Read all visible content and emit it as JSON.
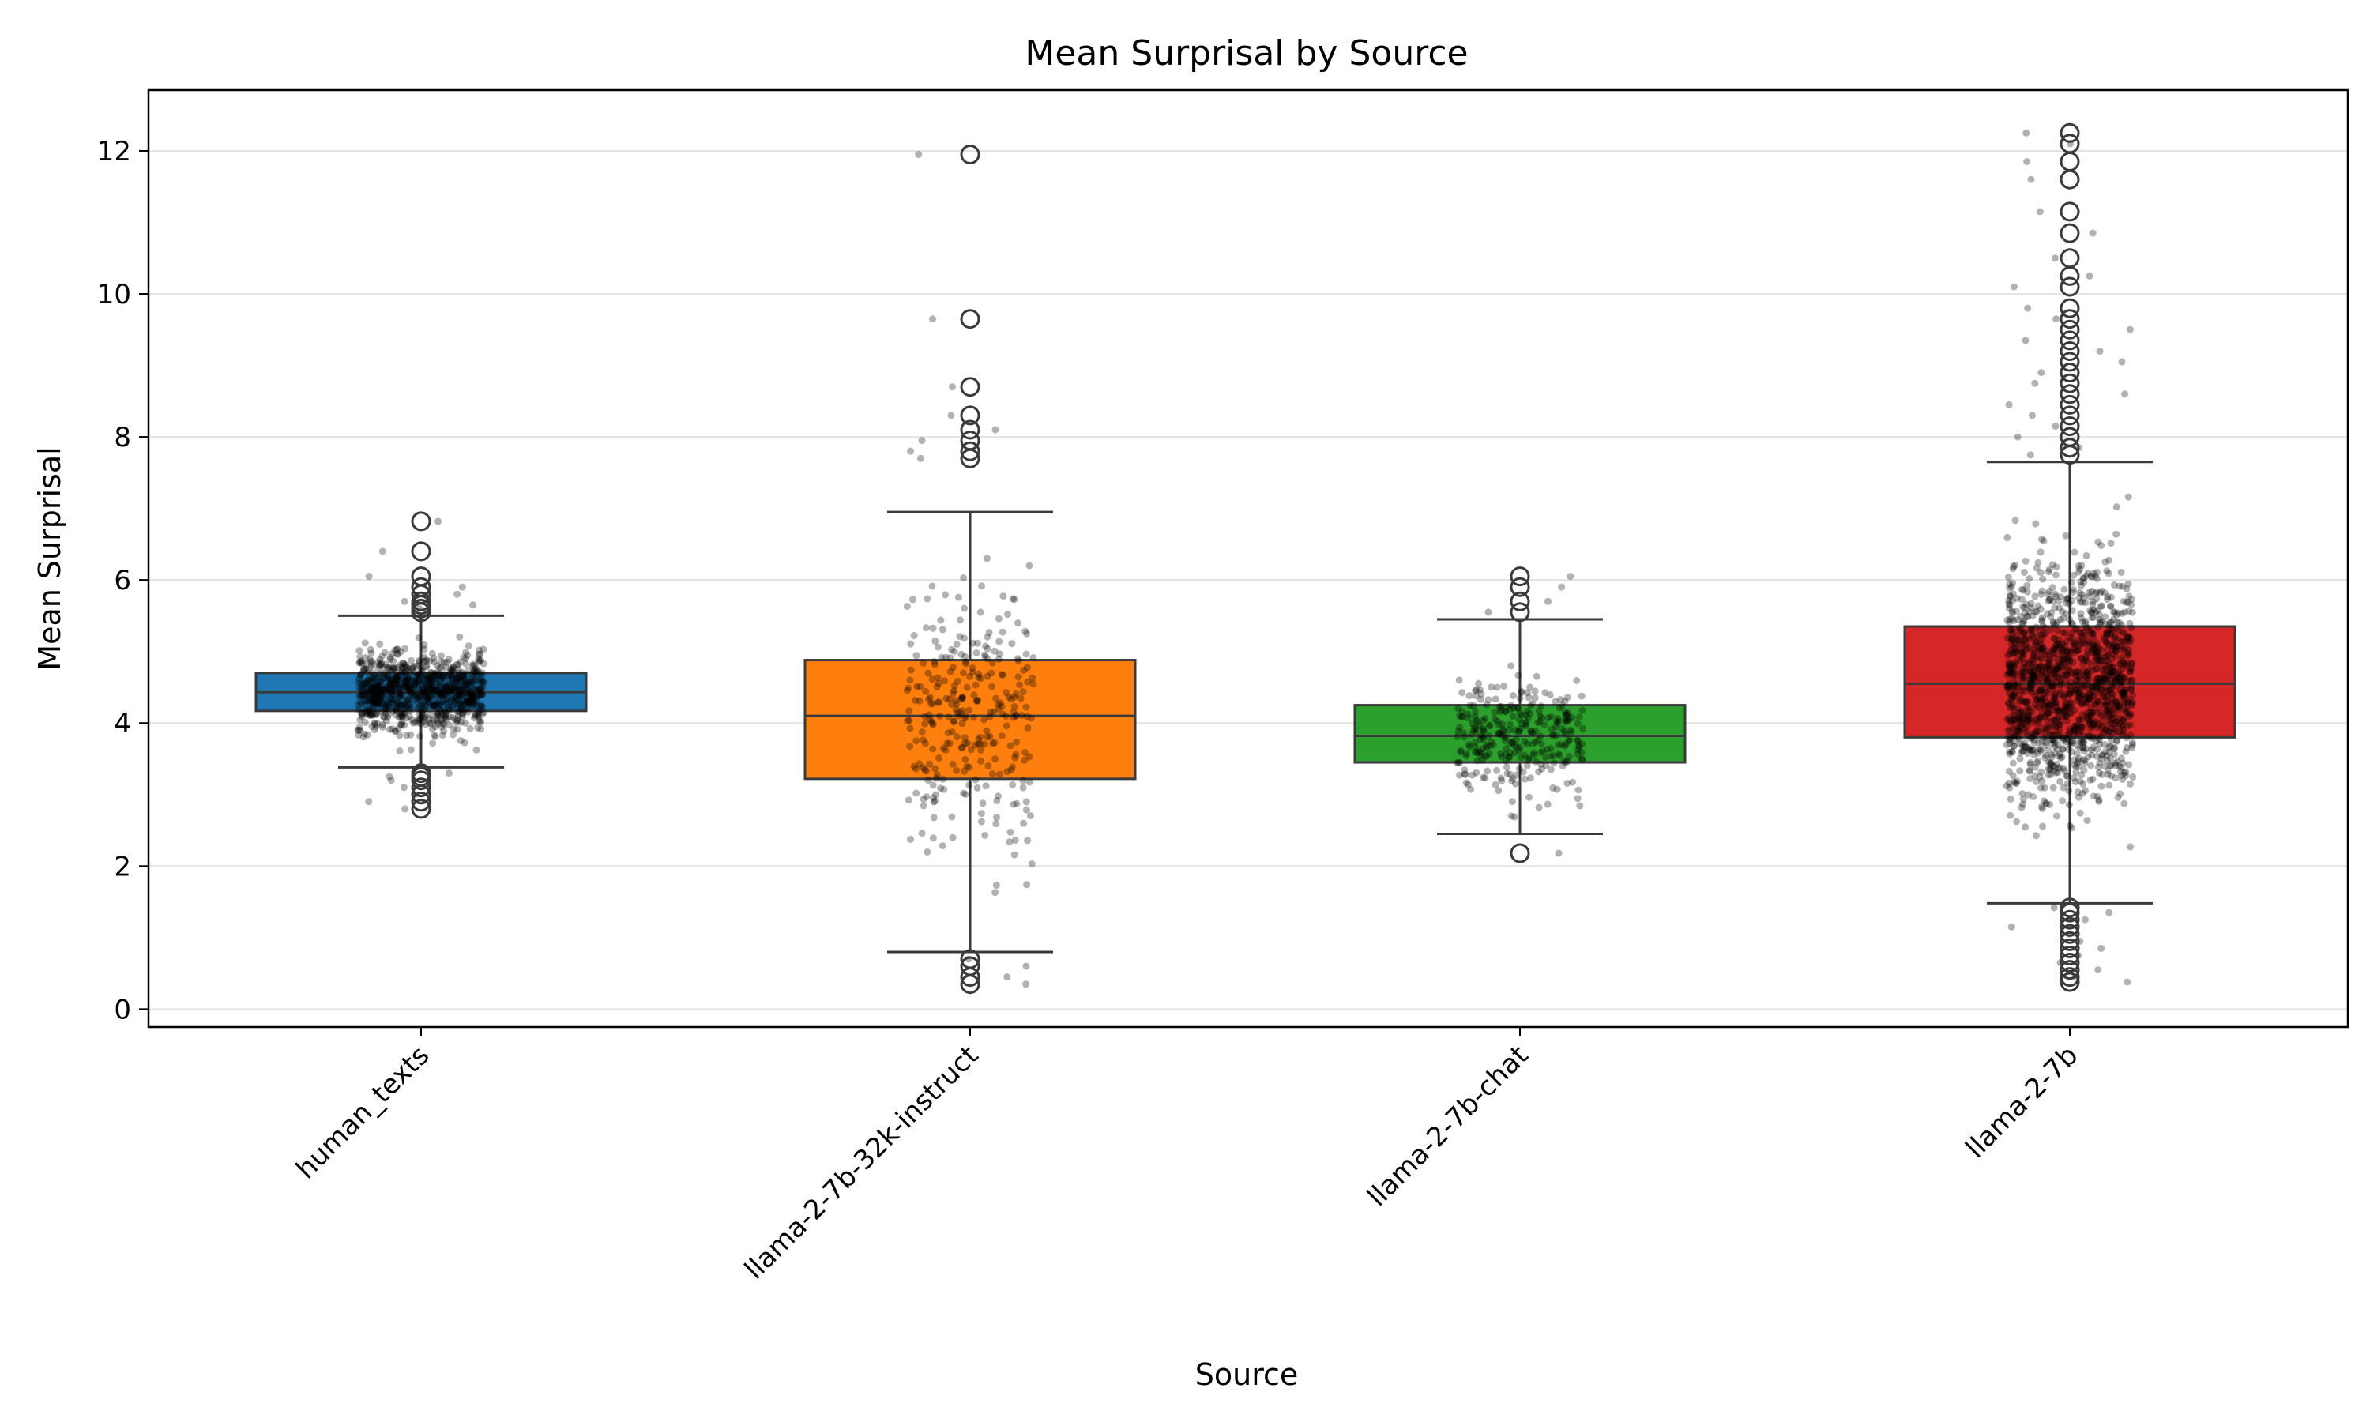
{
  "chart_data": {
    "type": "box",
    "title": "Mean Surprisal by Source",
    "xlabel": "Source",
    "ylabel": "Mean Surprisal",
    "ylim": [
      -0.25,
      12.85
    ],
    "yticks": [
      0,
      2,
      4,
      6,
      8,
      10,
      12
    ],
    "grid": "horizontal",
    "categories": [
      "human_texts",
      "llama-2-7b-32k-instruct",
      "llama-2-7b-chat",
      "llama-2-7b"
    ],
    "colors": [
      "#1f77b4",
      "#ff7f0e",
      "#2ca02c",
      "#d62728"
    ],
    "boxes": [
      {
        "category": "human_texts",
        "whisker_low": 3.38,
        "q1": 4.17,
        "median": 4.43,
        "q3": 4.7,
        "whisker_high": 5.5,
        "outliers": [
          2.8,
          2.9,
          3.0,
          3.1,
          3.2,
          3.25,
          3.3,
          5.55,
          5.6,
          5.65,
          5.7,
          5.8,
          5.9,
          6.05,
          6.4,
          6.82
        ]
      },
      {
        "category": "llama-2-7b-32k-instruct",
        "whisker_low": 0.8,
        "q1": 3.22,
        "median": 4.1,
        "q3": 4.88,
        "whisker_high": 6.95,
        "outliers": [
          0.35,
          0.45,
          0.6,
          0.7,
          7.7,
          7.8,
          7.95,
          8.1,
          8.3,
          8.7,
          9.65,
          11.95
        ]
      },
      {
        "category": "llama-2-7b-chat",
        "whisker_low": 2.45,
        "q1": 3.45,
        "median": 3.82,
        "q3": 4.25,
        "whisker_high": 5.45,
        "outliers": [
          2.18,
          5.55,
          5.7,
          5.9,
          6.05
        ]
      },
      {
        "category": "llama-2-7b",
        "whisker_low": 1.48,
        "q1": 3.8,
        "median": 4.55,
        "q3": 5.35,
        "whisker_high": 7.65,
        "outliers": [
          0.38,
          0.45,
          0.55,
          0.65,
          0.75,
          0.85,
          0.95,
          1.05,
          1.15,
          1.25,
          1.35,
          1.42,
          7.75,
          7.85,
          8.0,
          8.15,
          8.3,
          8.45,
          8.6,
          8.75,
          8.9,
          9.05,
          9.2,
          9.35,
          9.5,
          9.65,
          9.8,
          10.1,
          10.25,
          10.5,
          10.85,
          11.15,
          11.6,
          11.85,
          12.1,
          12.25
        ]
      }
    ],
    "strip_points_per_category": [
      900,
      300,
      300,
      1400
    ],
    "strip_point_color": "#000000"
  }
}
